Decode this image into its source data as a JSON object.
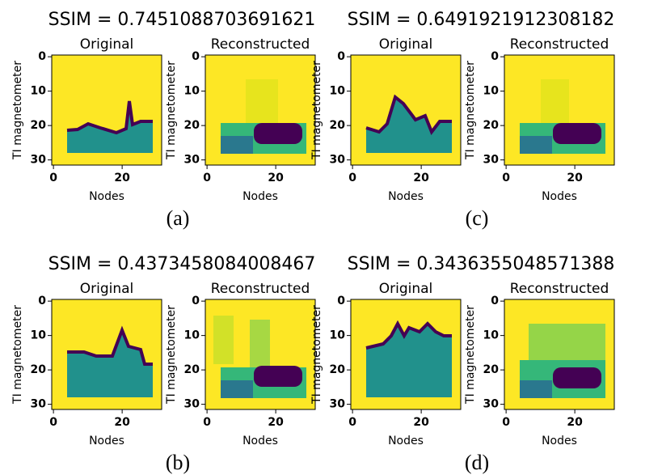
{
  "panels": [
    {
      "title": "SSIM = 0.7451088703691621",
      "caption": "(a)",
      "axes": [
        {
          "title": "Original",
          "ylabel": "TI magnetometer",
          "xlabel": "Nodes",
          "xticks": [
            0,
            20
          ],
          "yticks": [
            0,
            10,
            20,
            30
          ]
        },
        {
          "title": "Reconstructed",
          "ylabel": "TI magnetometer",
          "xlabel": "Nodes",
          "xticks": [
            0,
            20
          ],
          "yticks": [
            0,
            10,
            20,
            30
          ]
        }
      ]
    },
    {
      "title": "SSIM = 0.6491921912308182",
      "caption": "(c)",
      "axes": [
        {
          "title": "Original",
          "ylabel": "TI magnetometer",
          "xlabel": "Nodes",
          "xticks": [
            0,
            20
          ],
          "yticks": [
            0,
            10,
            20,
            30
          ]
        },
        {
          "title": "Reconstructed",
          "ylabel": "TI magnetometer",
          "xlabel": "Nodes",
          "xticks": [
            0,
            20
          ],
          "yticks": [
            0,
            10,
            20,
            30
          ]
        }
      ]
    },
    {
      "title": "SSIM = 0.4373458084008467",
      "caption": "(b)",
      "axes": [
        {
          "title": "Original",
          "ylabel": "TI magnetometer",
          "xlabel": "Nodes",
          "xticks": [
            0,
            20
          ],
          "yticks": [
            0,
            10,
            20,
            30
          ]
        },
        {
          "title": "Reconstructed",
          "ylabel": "TI magnetometer",
          "xlabel": "Nodes",
          "xticks": [
            0,
            20
          ],
          "yticks": [
            0,
            10,
            20,
            30
          ]
        }
      ]
    },
    {
      "title": "SSIM = 0.3436355048571388",
      "caption": "(d)",
      "axes": [
        {
          "title": "Original",
          "ylabel": "TI magnetometer",
          "xlabel": "Nodes",
          "xticks": [
            0,
            20
          ],
          "yticks": [
            0,
            10,
            20,
            30
          ]
        },
        {
          "title": "Reconstructed",
          "ylabel": "TI magnetometer",
          "xlabel": "Nodes",
          "xticks": [
            0,
            20
          ],
          "yticks": [
            0,
            10,
            20,
            30
          ]
        }
      ]
    }
  ]
}
